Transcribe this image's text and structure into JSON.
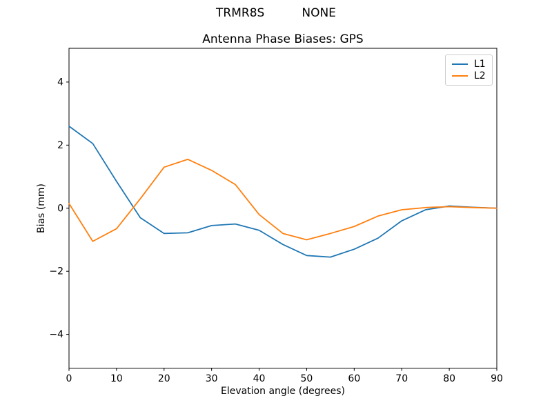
{
  "chart_data": {
    "type": "line",
    "suptitle": "TRMR8S          NONE",
    "title": "Antenna Phase Biases: GPS",
    "xlabel": "Elevation angle (degrees)",
    "ylabel": "Bias (mm)",
    "xlim": [
      0,
      90
    ],
    "ylim": [
      -5.07,
      5.07
    ],
    "xticks": [
      0,
      10,
      20,
      30,
      40,
      50,
      60,
      70,
      80,
      90
    ],
    "yticks": [
      -4,
      -2,
      0,
      2,
      4
    ],
    "grid": false,
    "legend_position": "upper right",
    "background_color": "#ffffff",
    "spine_color": "#000000",
    "x": [
      0,
      5,
      10,
      15,
      20,
      25,
      30,
      35,
      40,
      45,
      50,
      55,
      60,
      65,
      70,
      75,
      80,
      85,
      90
    ],
    "series": [
      {
        "name": "L1",
        "color": "#1f77b4",
        "values": [
          2.6,
          2.05,
          0.85,
          -0.3,
          -0.8,
          -0.78,
          -0.55,
          -0.5,
          -0.7,
          -1.15,
          -1.5,
          -1.55,
          -1.3,
          -0.95,
          -0.4,
          -0.05,
          0.07,
          0.03,
          0.0
        ]
      },
      {
        "name": "L2",
        "color": "#ff7f0e",
        "values": [
          0.15,
          -1.05,
          -0.65,
          0.3,
          1.3,
          1.55,
          1.2,
          0.75,
          -0.2,
          -0.8,
          -1.0,
          -0.8,
          -0.58,
          -0.25,
          -0.05,
          0.02,
          0.05,
          0.02,
          0.0
        ]
      }
    ]
  }
}
